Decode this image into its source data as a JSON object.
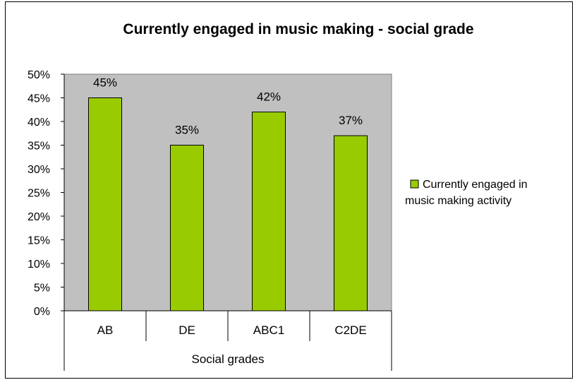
{
  "chart_data": {
    "type": "bar",
    "title": "Currently engaged in music making - social grade",
    "categories": [
      "AB",
      "DE",
      "ABC1",
      "C2DE"
    ],
    "series": [
      {
        "name": "Currently engaged in music making activity",
        "values": [
          45,
          35,
          42,
          37
        ]
      }
    ],
    "data_labels": [
      "45%",
      "35%",
      "42%",
      "37%"
    ],
    "xlabel": "Social grades",
    "ylabel": "",
    "ylim": [
      0,
      50
    ],
    "y_ticks": [
      "0%",
      "5%",
      "10%",
      "15%",
      "20%",
      "25%",
      "30%",
      "35%",
      "40%",
      "45%",
      "50%"
    ],
    "legend": {
      "placement": "right",
      "lines": [
        "Currently engaged in",
        "music making activity"
      ]
    },
    "grid": false,
    "colors": {
      "bar_fill": "#99CC00",
      "bar_stroke": "#000000",
      "plot_background": "#C0C0C0",
      "page_background": "#FFFFFF"
    }
  }
}
